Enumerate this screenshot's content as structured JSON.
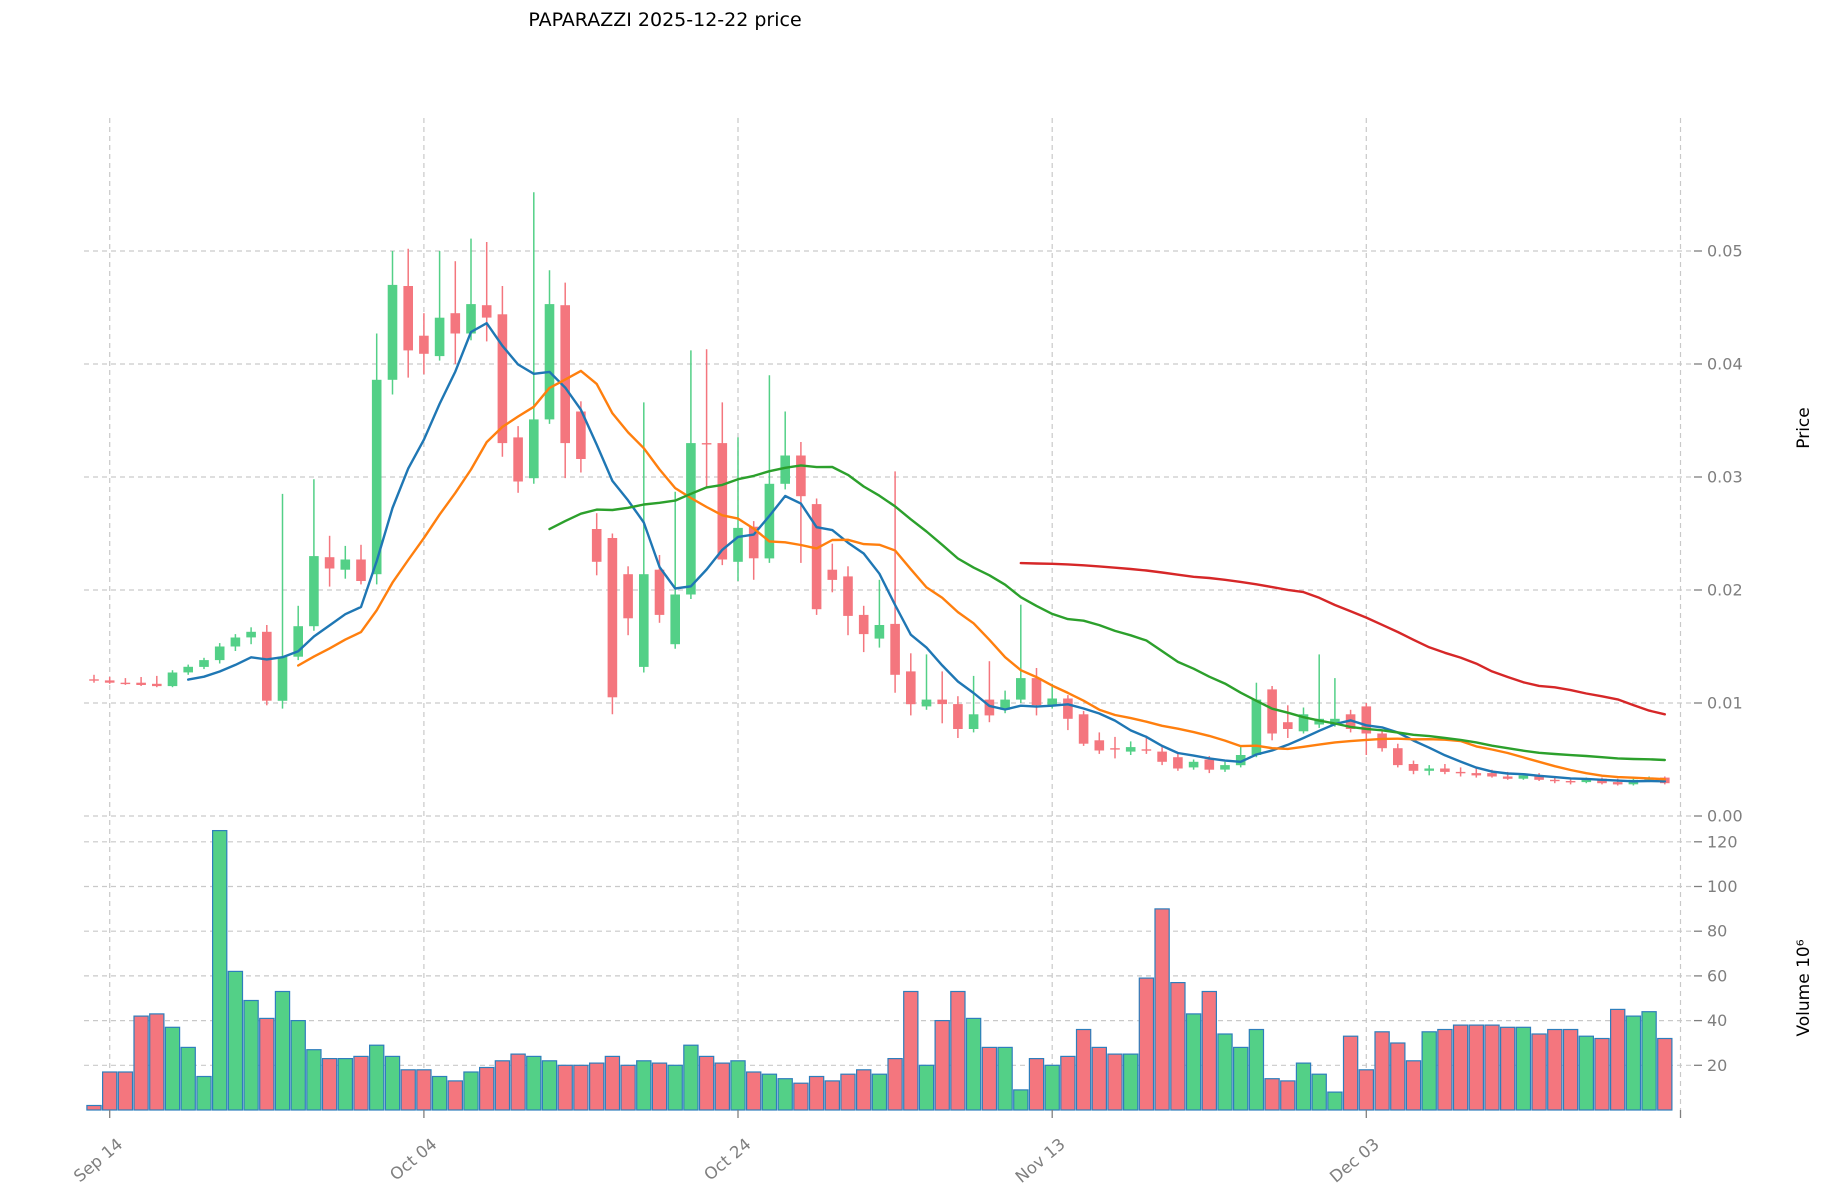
{
  "title": "PAPARAZZI  2025-12-22  price",
  "chart_data": {
    "type": "candlestick",
    "title": "PAPARAZZI  2025-12-22  price",
    "x_axis": {
      "tick_labels": [
        "Sep 14",
        "Oct 04",
        "Oct 24",
        "Nov 13",
        "Dec 03"
      ],
      "tick_day_indices": [
        1,
        21,
        41,
        61,
        81
      ],
      "unlabeled_gridline_day_index": 101
    },
    "price_axis": {
      "label": "Price",
      "tick_labels": [
        "0.00",
        "0.01",
        "0.02",
        "0.03",
        "0.04",
        "0.05"
      ],
      "tick_values": [
        0.0,
        0.01,
        0.02,
        0.03,
        0.04,
        0.05
      ],
      "ylim": [
        -0.0005,
        0.0618
      ]
    },
    "volume_axis": {
      "label": "Volume  10⁶",
      "tick_labels": [
        "20",
        "40",
        "60",
        "80",
        "100",
        "120"
      ],
      "tick_values": [
        20,
        40,
        60,
        80,
        100,
        120
      ],
      "unit": "millions",
      "ylim": [
        0,
        129
      ]
    },
    "moving_averages": {
      "windows": [
        7,
        14,
        30,
        60
      ],
      "colors": [
        "#1f77b4",
        "#ff7f0e",
        "#2ca02c",
        "#d62728"
      ]
    },
    "colors": {
      "up": "#53d087",
      "down": "#f4767e",
      "volume_bar_edge": "#2e7ebc",
      "grid": "#c9c9c9",
      "tick_text": "#7f7f7f",
      "axis_label_text": "#000000"
    },
    "columns": [
      "date",
      "open",
      "high",
      "low",
      "close",
      "volume_millions"
    ],
    "candles": [
      [
        "2025-09-13",
        0.0121,
        0.0125,
        0.0118,
        0.012,
        2
      ],
      [
        "2025-09-14",
        0.012,
        0.0123,
        0.0117,
        0.0118,
        17
      ],
      [
        "2025-09-15",
        0.0118,
        0.0122,
        0.0116,
        0.0117,
        17
      ],
      [
        "2025-09-16",
        0.0118,
        0.0123,
        0.0115,
        0.0116,
        42
      ],
      [
        "2025-09-17",
        0.0117,
        0.0124,
        0.0114,
        0.0115,
        43
      ],
      [
        "2025-09-18",
        0.0115,
        0.0129,
        0.0114,
        0.0127,
        37
      ],
      [
        "2025-09-19",
        0.0127,
        0.0134,
        0.0125,
        0.0132,
        28
      ],
      [
        "2025-09-20",
        0.0132,
        0.014,
        0.013,
        0.0138,
        15
      ],
      [
        "2025-09-21",
        0.0138,
        0.0153,
        0.0135,
        0.015,
        125
      ],
      [
        "2025-09-22",
        0.015,
        0.0161,
        0.0146,
        0.0158,
        62
      ],
      [
        "2025-09-23",
        0.0158,
        0.0167,
        0.0152,
        0.0163,
        49
      ],
      [
        "2025-09-24",
        0.0163,
        0.0169,
        0.0098,
        0.0102,
        41
      ],
      [
        "2025-09-25",
        0.0102,
        0.0285,
        0.0095,
        0.0141,
        53
      ],
      [
        "2025-09-26",
        0.0141,
        0.0186,
        0.0138,
        0.0168,
        40
      ],
      [
        "2025-09-27",
        0.0168,
        0.0298,
        0.0164,
        0.023,
        27
      ],
      [
        "2025-09-28",
        0.0229,
        0.0248,
        0.0203,
        0.0219,
        23
      ],
      [
        "2025-09-29",
        0.0218,
        0.0239,
        0.021,
        0.0227,
        23
      ],
      [
        "2025-09-30",
        0.0227,
        0.024,
        0.0205,
        0.0208,
        24
      ],
      [
        "2025-10-01",
        0.0214,
        0.0427,
        0.0205,
        0.0386,
        29
      ],
      [
        "2025-10-02",
        0.0386,
        0.05,
        0.0373,
        0.047,
        24
      ],
      [
        "2025-10-03",
        0.0469,
        0.0502,
        0.0388,
        0.0412,
        18
      ],
      [
        "2025-10-04",
        0.0425,
        0.0445,
        0.0391,
        0.0409,
        18
      ],
      [
        "2025-10-05",
        0.0407,
        0.05,
        0.0403,
        0.0441,
        15
      ],
      [
        "2025-10-06",
        0.0445,
        0.0491,
        0.04,
        0.0427,
        13
      ],
      [
        "2025-10-07",
        0.0427,
        0.0511,
        0.0421,
        0.0453,
        17
      ],
      [
        "2025-10-08",
        0.0452,
        0.0508,
        0.042,
        0.0441,
        19
      ],
      [
        "2025-10-09",
        0.0444,
        0.0469,
        0.0318,
        0.033,
        22
      ],
      [
        "2025-10-10",
        0.0335,
        0.0345,
        0.0286,
        0.0296,
        25
      ],
      [
        "2025-10-11",
        0.0299,
        0.0552,
        0.0294,
        0.0351,
        24
      ],
      [
        "2025-10-12",
        0.0351,
        0.0483,
        0.0347,
        0.0453,
        22
      ],
      [
        "2025-10-13",
        0.0452,
        0.0472,
        0.0299,
        0.033,
        20
      ],
      [
        "2025-10-14",
        0.0358,
        0.0367,
        0.0304,
        0.0316,
        20
      ],
      [
        "2025-10-15",
        0.0254,
        0.0268,
        0.0213,
        0.0225,
        21
      ],
      [
        "2025-10-16",
        0.0246,
        0.025,
        0.009,
        0.0105,
        24
      ],
      [
        "2025-10-17",
        0.0214,
        0.0221,
        0.016,
        0.0175,
        20
      ],
      [
        "2025-10-18",
        0.0132,
        0.0366,
        0.0127,
        0.0214,
        22
      ],
      [
        "2025-10-19",
        0.0218,
        0.0231,
        0.0171,
        0.0178,
        21
      ],
      [
        "2025-10-20",
        0.0152,
        0.0287,
        0.0148,
        0.0196,
        20
      ],
      [
        "2025-10-21",
        0.0196,
        0.0412,
        0.0192,
        0.033,
        29
      ],
      [
        "2025-10-22",
        0.033,
        0.0413,
        0.0291,
        0.0329,
        24
      ],
      [
        "2025-10-23",
        0.033,
        0.0366,
        0.0222,
        0.0227,
        21
      ],
      [
        "2025-10-24",
        0.0225,
        0.0335,
        0.0208,
        0.0255,
        22
      ],
      [
        "2025-10-25",
        0.0256,
        0.0261,
        0.0209,
        0.0228,
        17
      ],
      [
        "2025-10-26",
        0.0228,
        0.039,
        0.0224,
        0.0294,
        16
      ],
      [
        "2025-10-27",
        0.0294,
        0.0358,
        0.0289,
        0.0319,
        14
      ],
      [
        "2025-10-28",
        0.0319,
        0.0331,
        0.0224,
        0.0283,
        12
      ],
      [
        "2025-10-29",
        0.0276,
        0.0281,
        0.0178,
        0.0183,
        15
      ],
      [
        "2025-10-30",
        0.0218,
        0.0241,
        0.0198,
        0.0209,
        13
      ],
      [
        "2025-10-31",
        0.0212,
        0.0221,
        0.016,
        0.0177,
        16
      ],
      [
        "2025-11-01",
        0.0178,
        0.0186,
        0.0145,
        0.0161,
        18
      ],
      [
        "2025-11-02",
        0.0157,
        0.0209,
        0.0149,
        0.0169,
        16
      ],
      [
        "2025-11-03",
        0.017,
        0.0305,
        0.0109,
        0.0125,
        23
      ],
      [
        "2025-11-04",
        0.0128,
        0.0144,
        0.0089,
        0.0099,
        53
      ],
      [
        "2025-11-05",
        0.0097,
        0.0143,
        0.0094,
        0.0103,
        20
      ],
      [
        "2025-11-06",
        0.0103,
        0.0128,
        0.0082,
        0.0099,
        40
      ],
      [
        "2025-11-07",
        0.0099,
        0.0106,
        0.0069,
        0.0077,
        53
      ],
      [
        "2025-11-08",
        0.0077,
        0.0124,
        0.0074,
        0.009,
        41
      ],
      [
        "2025-11-09",
        0.0103,
        0.0137,
        0.0083,
        0.0089,
        28
      ],
      [
        "2025-11-10",
        0.0094,
        0.0111,
        0.0091,
        0.0103,
        28
      ],
      [
        "2025-11-11",
        0.0103,
        0.0187,
        0.01,
        0.0122,
        9
      ],
      [
        "2025-11-12",
        0.0122,
        0.0131,
        0.0089,
        0.0098,
        23
      ],
      [
        "2025-11-13",
        0.0098,
        0.0117,
        0.0095,
        0.0104,
        20
      ],
      [
        "2025-11-14",
        0.0104,
        0.0107,
        0.0076,
        0.0086,
        24
      ],
      [
        "2025-11-15",
        0.009,
        0.0093,
        0.0062,
        0.0064,
        36
      ],
      [
        "2025-11-16",
        0.0067,
        0.0074,
        0.0055,
        0.0058,
        28
      ],
      [
        "2025-11-17",
        0.006,
        0.007,
        0.0051,
        0.0059,
        25
      ],
      [
        "2025-11-18",
        0.0057,
        0.0066,
        0.0054,
        0.0061,
        25
      ],
      [
        "2025-11-19",
        0.0059,
        0.0071,
        0.0055,
        0.0058,
        59
      ],
      [
        "2025-11-20",
        0.0057,
        0.0061,
        0.0045,
        0.0048,
        90
      ],
      [
        "2025-11-21",
        0.0052,
        0.0055,
        0.004,
        0.0042,
        57
      ],
      [
        "2025-11-22",
        0.0043,
        0.005,
        0.0041,
        0.0048,
        43
      ],
      [
        "2025-11-23",
        0.005,
        0.0053,
        0.0038,
        0.0041,
        53
      ],
      [
        "2025-11-24",
        0.0041,
        0.0048,
        0.0039,
        0.0045,
        34
      ],
      [
        "2025-11-25",
        0.0045,
        0.0061,
        0.0043,
        0.0054,
        28
      ],
      [
        "2025-11-26",
        0.0054,
        0.0118,
        0.0052,
        0.0103,
        36
      ],
      [
        "2025-11-27",
        0.0112,
        0.0115,
        0.0067,
        0.0073,
        14
      ],
      [
        "2025-11-28",
        0.0083,
        0.0098,
        0.0069,
        0.0077,
        13
      ],
      [
        "2025-11-29",
        0.0075,
        0.0096,
        0.0073,
        0.009,
        21
      ],
      [
        "2025-11-30",
        0.0081,
        0.0143,
        0.0078,
        0.0086,
        16
      ],
      [
        "2025-12-01",
        0.0081,
        0.0122,
        0.0079,
        0.0086,
        8
      ],
      [
        "2025-12-02",
        0.009,
        0.0094,
        0.0074,
        0.0077,
        33
      ],
      [
        "2025-12-03",
        0.0097,
        0.01,
        0.0054,
        0.0073,
        18
      ],
      [
        "2025-12-04",
        0.0073,
        0.0076,
        0.0057,
        0.006,
        35
      ],
      [
        "2025-12-05",
        0.006,
        0.0064,
        0.0043,
        0.0045,
        30
      ],
      [
        "2025-12-06",
        0.0046,
        0.0049,
        0.0037,
        0.004,
        22
      ],
      [
        "2025-12-07",
        0.004,
        0.0045,
        0.0036,
        0.0042,
        35
      ],
      [
        "2025-12-08",
        0.0042,
        0.0046,
        0.0037,
        0.0039,
        36
      ],
      [
        "2025-12-09",
        0.0039,
        0.0043,
        0.0035,
        0.0038,
        38
      ],
      [
        "2025-12-10",
        0.0038,
        0.0042,
        0.0034,
        0.0036,
        38
      ],
      [
        "2025-12-11",
        0.0038,
        0.0041,
        0.0034,
        0.0035,
        38
      ],
      [
        "2025-12-12",
        0.0035,
        0.0039,
        0.0032,
        0.0033,
        37
      ],
      [
        "2025-12-13",
        0.0033,
        0.0037,
        0.0032,
        0.0036,
        37
      ],
      [
        "2025-12-14",
        0.0036,
        0.0038,
        0.0031,
        0.0032,
        34
      ],
      [
        "2025-12-15",
        0.0032,
        0.0035,
        0.0029,
        0.0031,
        36
      ],
      [
        "2025-12-16",
        0.0031,
        0.0034,
        0.0028,
        0.003,
        36
      ],
      [
        "2025-12-17",
        0.003,
        0.0034,
        0.0029,
        0.0033,
        33
      ],
      [
        "2025-12-18",
        0.0033,
        0.0034,
        0.0028,
        0.0029,
        32
      ],
      [
        "2025-12-19",
        0.003,
        0.0033,
        0.0027,
        0.0028,
        45
      ],
      [
        "2025-12-20",
        0.0028,
        0.0033,
        0.0027,
        0.0032,
        42
      ],
      [
        "2025-12-21",
        0.0032,
        0.0035,
        0.003,
        0.0034,
        44
      ],
      [
        "2025-12-22",
        0.0034,
        0.0035,
        0.0028,
        0.0029,
        32
      ]
    ]
  }
}
